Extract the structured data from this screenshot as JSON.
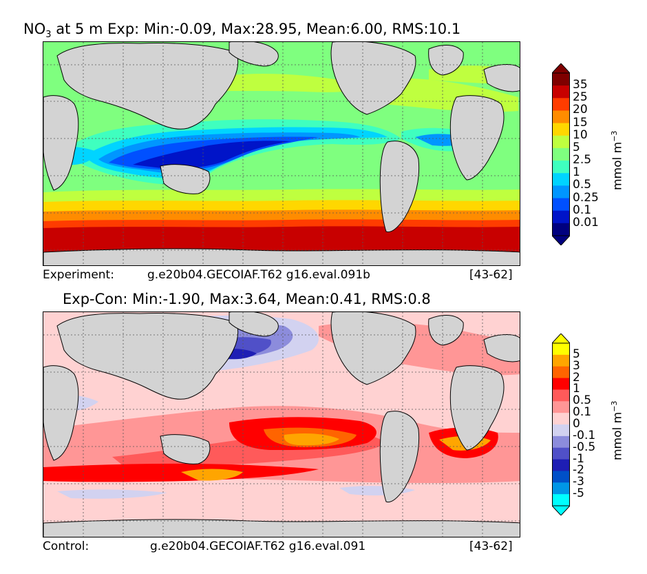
{
  "panel_top": {
    "title_prefix": "NO",
    "title_sub": "3",
    "title_rest": " at 5 m Exp: Min:-0.09, Max:28.95, Mean:6.00, RMS:10.1",
    "footer_left": "Experiment:",
    "footer_mid": "g.e20b04.GECOIAF.T62 g16.eval.091b",
    "footer_right": "[43-62]",
    "units": "mmol m",
    "units_exp": "−3",
    "colorbar": {
      "labels": [
        "35",
        "25",
        "20",
        "15",
        "10",
        "5",
        "2.5",
        "1",
        "0.5",
        "0.25",
        "0.1",
        "0.01"
      ],
      "colors": [
        "#7f0000",
        "#c80000",
        "#ff3c00",
        "#ff8c00",
        "#ffd700",
        "#bfff3f",
        "#7fff7f",
        "#3fffbf",
        "#00d4ff",
        "#0096ff",
        "#0050ff",
        "#0014c8",
        "#00007f"
      ],
      "over_color": "#7f0000",
      "under_color": "#00007f"
    }
  },
  "panel_bottom": {
    "title": "Exp-Con: Min:-1.90, Max:3.64, Mean:0.41, RMS:0.8",
    "footer_left": "Control:",
    "footer_mid": "g.e20b04.GECOIAF.T62 g16.eval.091",
    "footer_right": "[43-62]",
    "units": "mmol m",
    "units_exp": "−3",
    "colorbar": {
      "labels": [
        "5",
        "3",
        "2",
        "1",
        "0.5",
        "0.1",
        "0",
        "-0.1",
        "-0.5",
        "-1",
        "-2",
        "-3",
        "-5"
      ],
      "colors": [
        "#ffff00",
        "#ffa500",
        "#ff6400",
        "#ff0000",
        "#ff5a5a",
        "#ff9696",
        "#ffd2d2",
        "#d2d2f0",
        "#8c8cdc",
        "#5050c8",
        "#1e1eb4",
        "#0050c8",
        "#0096e6",
        "#00ffff"
      ],
      "over_color": "#ffff00",
      "under_color": "#00ffff"
    }
  }
}
